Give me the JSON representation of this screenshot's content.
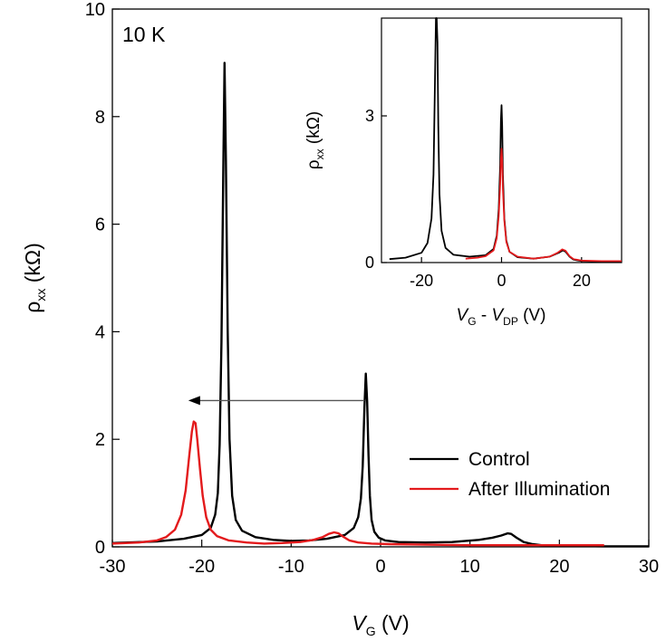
{
  "chart_data": [
    {
      "type": "line",
      "temperature_label": "10 K",
      "xlabel_main": "V",
      "xlabel_sub": "G",
      "xlabel_unit": " (V)",
      "ylabel_main": "ρ",
      "ylabel_sub": "xx",
      "ylabel_unit": " (kΩ)",
      "xlim": [
        -30,
        30
      ],
      "ylim": [
        0,
        10
      ],
      "xticks": [
        "-30",
        "-20",
        "-10",
        "0",
        "10",
        "20",
        "30"
      ],
      "yticks": [
        "0",
        "2",
        "4",
        "6",
        "8",
        "10"
      ],
      "legend_position": "bottom-right",
      "annotation": {
        "type": "arrow",
        "from": [
          -1.8,
          2.72
        ],
        "to": [
          -21.5,
          2.72
        ]
      },
      "series": [
        {
          "name": "Control",
          "color": "#000000",
          "x": [
            -30,
            -25,
            -22,
            -20,
            -19,
            -18.5,
            -18.2,
            -18,
            -17.8,
            -17.6,
            -17.45,
            -17.3,
            -17.1,
            -16.9,
            -16.6,
            -16.2,
            -15.5,
            -14,
            -12,
            -10,
            -8,
            -6,
            -4,
            -3,
            -2.5,
            -2.2,
            -2,
            -1.8,
            -1.65,
            -1.5,
            -1.35,
            -1.2,
            -1,
            -0.7,
            -0.2,
            0.5,
            2,
            5,
            8,
            11,
            12.5,
            13.5,
            14.2,
            14.6,
            15.2,
            16,
            17,
            18,
            20,
            25,
            30
          ],
          "y": [
            0.07,
            0.1,
            0.15,
            0.22,
            0.35,
            0.6,
            1.0,
            1.9,
            3.8,
            6.8,
            9.0,
            7.2,
            4.0,
            2.0,
            0.95,
            0.5,
            0.3,
            0.18,
            0.13,
            0.11,
            0.12,
            0.15,
            0.22,
            0.35,
            0.55,
            0.9,
            1.5,
            2.6,
            3.22,
            2.7,
            1.7,
            0.95,
            0.5,
            0.28,
            0.17,
            0.12,
            0.09,
            0.08,
            0.09,
            0.13,
            0.17,
            0.21,
            0.25,
            0.24,
            0.17,
            0.09,
            0.05,
            0.03,
            0.02,
            0.01,
            0.01
          ]
        },
        {
          "name": "After Illumination",
          "color": "#e31a1c",
          "x": [
            -30,
            -27,
            -25,
            -24,
            -23,
            -22.3,
            -21.8,
            -21.4,
            -21.1,
            -20.9,
            -20.7,
            -20.5,
            -20.2,
            -19.9,
            -19.5,
            -19,
            -18.3,
            -17,
            -15,
            -13,
            -11,
            -9,
            -7.5,
            -6.5,
            -5.8,
            -5.2,
            -4.7,
            -4.2,
            -3.5,
            -2.5,
            -1,
            1,
            5,
            10,
            15,
            20,
            25
          ],
          "y": [
            0.06,
            0.08,
            0.12,
            0.18,
            0.32,
            0.6,
            1.05,
            1.7,
            2.15,
            2.33,
            2.3,
            2.0,
            1.45,
            0.95,
            0.55,
            0.32,
            0.2,
            0.12,
            0.08,
            0.06,
            0.07,
            0.09,
            0.13,
            0.18,
            0.24,
            0.27,
            0.25,
            0.19,
            0.12,
            0.08,
            0.06,
            0.05,
            0.04,
            0.03,
            0.03,
            0.03,
            0.03
          ]
        }
      ]
    },
    {
      "type": "line",
      "role": "inset",
      "xlabel_v1": "V",
      "xlabel_s1": "G",
      "xlabel_mid": " - ",
      "xlabel_v2": "V",
      "xlabel_s2": "DP",
      "xlabel_unit": " (V)",
      "ylabel_main": "ρ",
      "ylabel_sub": "xx",
      "ylabel_unit": " (kΩ)",
      "xlim": [
        -30,
        30
      ],
      "ylim": [
        0,
        5
      ],
      "xticks": [
        "-20",
        "0",
        "20"
      ],
      "yticks": [
        "0",
        "3"
      ],
      "series": [
        {
          "name": "Control",
          "color": "#000000",
          "x": [
            -28,
            -24,
            -20,
            -18.5,
            -17.5,
            -17,
            -16.7,
            -16.4,
            -16.2,
            -16,
            -15.8,
            -15.5,
            -15,
            -14,
            -12,
            -8,
            -4,
            -2,
            -1.2,
            -0.7,
            -0.35,
            -0.15,
            0,
            0.15,
            0.35,
            0.7,
            1.2,
            2,
            4,
            8,
            12,
            14.3,
            15.3,
            16,
            17,
            18,
            20,
            25,
            30
          ],
          "y": [
            0.07,
            0.1,
            0.2,
            0.4,
            0.9,
            1.8,
            3.3,
            5.0,
            5.6,
            4.5,
            2.8,
            1.4,
            0.65,
            0.3,
            0.16,
            0.12,
            0.15,
            0.28,
            0.55,
            1.1,
            2.0,
            2.9,
            3.22,
            2.8,
            1.8,
            0.9,
            0.45,
            0.22,
            0.11,
            0.08,
            0.12,
            0.2,
            0.25,
            0.22,
            0.12,
            0.06,
            0.03,
            0.02,
            0.01
          ]
        },
        {
          "name": "After Illumination",
          "color": "#e31a1c",
          "x": [
            -9,
            -6,
            -4,
            -2,
            -1.2,
            -0.7,
            -0.35,
            -0.15,
            0,
            0.15,
            0.35,
            0.7,
            1.2,
            2,
            4,
            8,
            12,
            14,
            15.2,
            16,
            17,
            18,
            20,
            25,
            30
          ],
          "y": [
            0.08,
            0.1,
            0.13,
            0.25,
            0.5,
            0.95,
            1.6,
            2.1,
            2.33,
            2.1,
            1.5,
            0.85,
            0.42,
            0.22,
            0.12,
            0.08,
            0.12,
            0.2,
            0.27,
            0.24,
            0.13,
            0.07,
            0.04,
            0.03,
            0.03
          ]
        }
      ]
    }
  ]
}
